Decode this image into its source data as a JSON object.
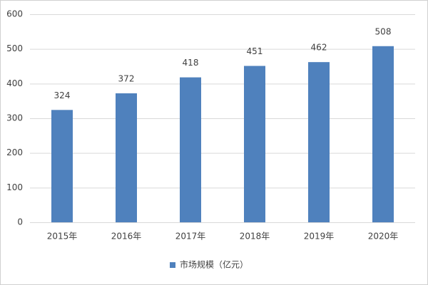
{
  "chart_data": {
    "type": "bar",
    "categories": [
      "2015年",
      "2016年",
      "2017年",
      "2018年",
      "2019年",
      "2020年"
    ],
    "series": [
      {
        "name": "市场规模（亿元）",
        "color": "#4f81bd",
        "values": [
          324,
          372,
          418,
          451,
          462,
          508
        ]
      }
    ],
    "ylim": [
      0,
      600
    ],
    "yticks": [
      0,
      100,
      200,
      300,
      400,
      500,
      600
    ],
    "grid": true,
    "legend": "bottom"
  }
}
